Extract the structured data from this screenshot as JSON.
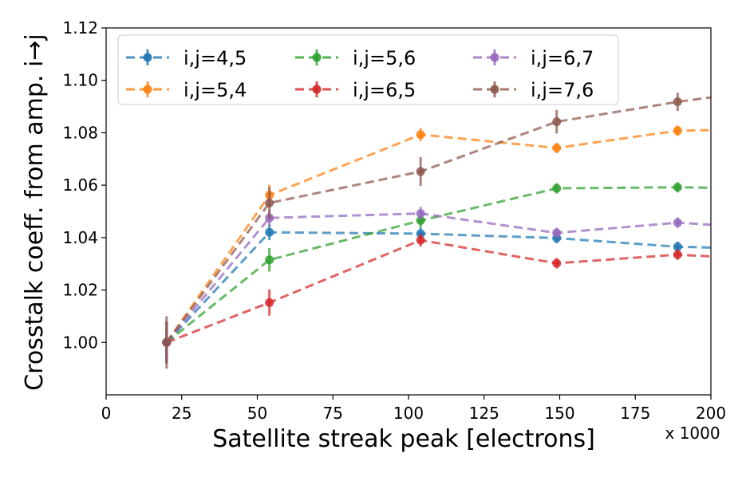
{
  "chart_data": {
    "type": "line",
    "xlabel": "Satellite streak peak [electrons]",
    "ylabel": "Crosstalk coeff. from amp. i→j",
    "x_multiplier_label": "x 1000",
    "xlim": [
      0,
      200
    ],
    "ylim": [
      0.98,
      1.12
    ],
    "x_ticks": [
      0,
      25,
      50,
      75,
      100,
      125,
      150,
      175,
      200
    ],
    "y_ticks": [
      1.0,
      1.02,
      1.04,
      1.06,
      1.08,
      1.1,
      1.12
    ],
    "x_tick_labels": [
      "0",
      "25",
      "50",
      "75",
      "100",
      "125",
      "150",
      "175",
      "200"
    ],
    "y_tick_labels": [
      "1.00",
      "1.02",
      "1.04",
      "1.06",
      "1.08",
      "1.10",
      "1.12"
    ],
    "grid": false,
    "legend_position": "top-left",
    "x": [
      20,
      54,
      104,
      149,
      189
    ],
    "extension_x": 200,
    "series": [
      {
        "name": "i,j=4,5",
        "color": "#1f77b4",
        "values": [
          1.0,
          1.042,
          1.0415,
          1.0398,
          1.0365
        ],
        "errors": [
          0.008,
          0.003,
          0.0025,
          0.002,
          0.002
        ],
        "extension_value": 1.0362
      },
      {
        "name": "i,j=5,4",
        "color": "#ff7f0e",
        "values": [
          1.0,
          1.0562,
          1.0793,
          1.0742,
          1.0808
        ],
        "errors": [
          0.008,
          0.004,
          0.0025,
          0.002,
          0.002
        ],
        "extension_value": 1.081
      },
      {
        "name": "i,j=5,6",
        "color": "#2ca02c",
        "values": [
          1.0,
          1.0315,
          1.0465,
          1.0588,
          1.0592
        ],
        "errors": [
          0.008,
          0.0045,
          0.0025,
          0.002,
          0.002
        ],
        "extension_value": 1.059
      },
      {
        "name": "i,j=6,5",
        "color": "#d62728",
        "values": [
          1.0,
          1.0152,
          1.039,
          1.0302,
          1.0335
        ],
        "errors": [
          0.008,
          0.005,
          0.0025,
          0.002,
          0.002
        ],
        "extension_value": 1.0328
      },
      {
        "name": "i,j=6,7",
        "color": "#9467bd",
        "values": [
          1.0,
          1.0475,
          1.0492,
          1.0418,
          1.0457
        ],
        "errors": [
          0.008,
          0.003,
          0.0025,
          0.002,
          0.002
        ],
        "extension_value": 1.0449
      },
      {
        "name": "i,j=7,6",
        "color": "#8c564b",
        "values": [
          1.0,
          1.0532,
          1.0652,
          1.0842,
          1.0918
        ],
        "errors": [
          0.01,
          0.006,
          0.0055,
          0.0045,
          0.0035
        ],
        "extension_value": 1.0935
      }
    ]
  }
}
